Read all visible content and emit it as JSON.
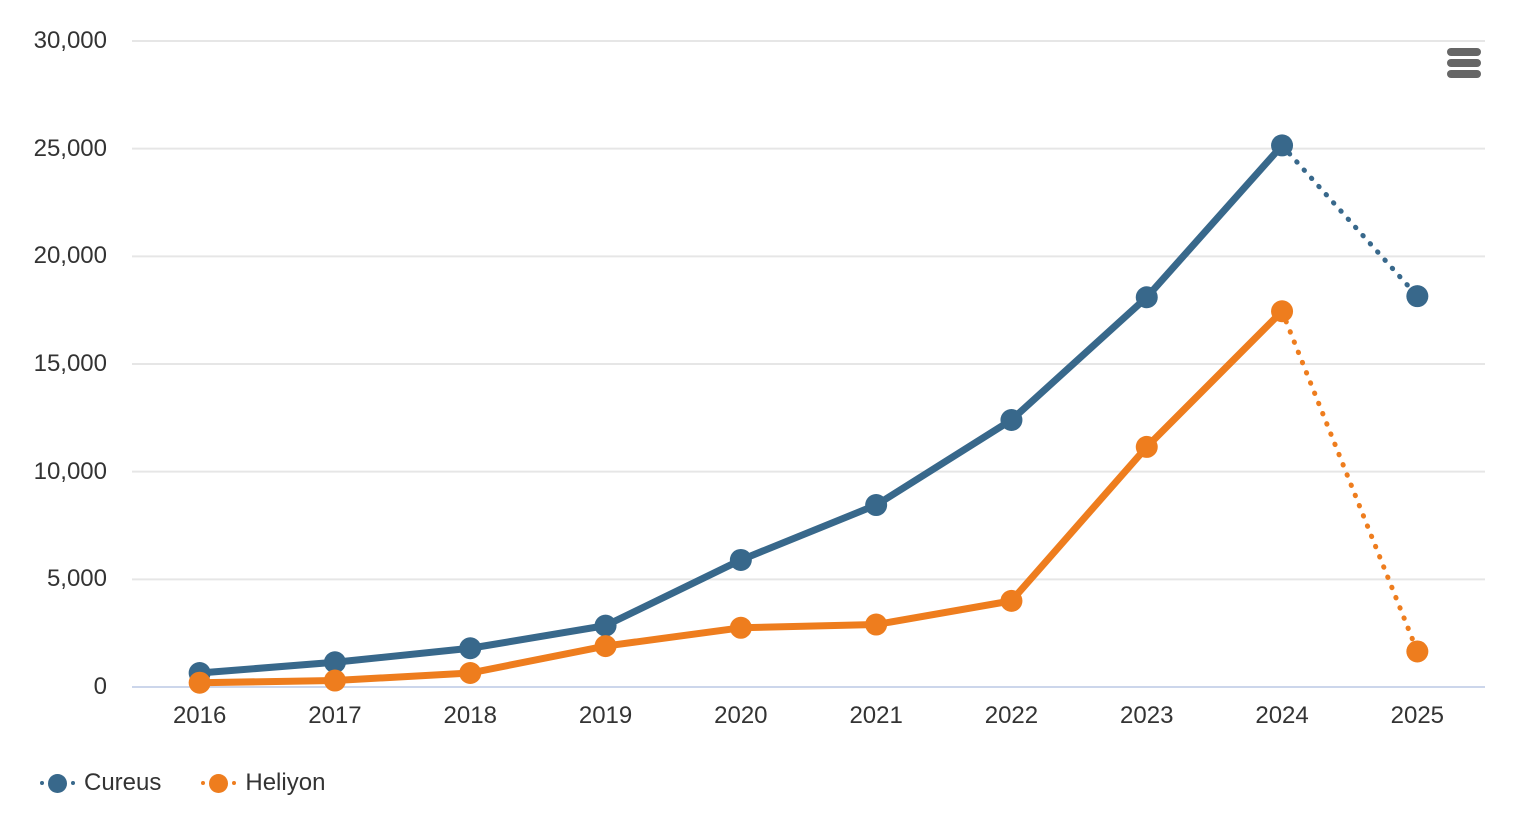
{
  "chart_data": {
    "type": "line",
    "title": "",
    "xlabel": "",
    "ylabel": "",
    "categories": [
      "2016",
      "2017",
      "2018",
      "2019",
      "2020",
      "2021",
      "2022",
      "2023",
      "2024",
      "2025"
    ],
    "series": [
      {
        "name": "Cureus",
        "color": "#38688b",
        "values": [
          650,
          1150,
          1800,
          2850,
          5900,
          8450,
          12400,
          18100,
          25150,
          18150
        ],
        "dashed_from_index": 8
      },
      {
        "name": "Heliyon",
        "color": "#ee7d1e",
        "values": [
          200,
          300,
          650,
          1900,
          2750,
          2900,
          4000,
          11150,
          17450,
          1650
        ],
        "dashed_from_index": 8
      }
    ],
    "ylim": [
      0,
      30000
    ],
    "ytick_step": 5000,
    "ytick_labels": [
      "0",
      "5,000",
      "10,000",
      "15,000",
      "20,000",
      "25,000",
      "30,000"
    ],
    "grid": true,
    "legend_position": "bottom-left",
    "colors": {
      "grid": "#e6e6e6",
      "axis_line": "#ccd6eb",
      "label_text": "#333333",
      "menu_icon": "#666666",
      "background": "#ffffff"
    }
  },
  "menu": {
    "icon": "hamburger-menu-icon"
  }
}
